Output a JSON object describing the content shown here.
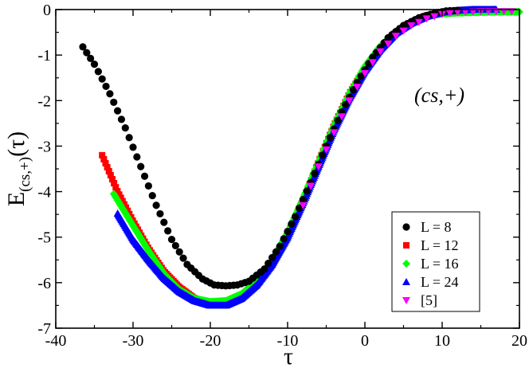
{
  "chart_data": {
    "type": "scatter",
    "title": "",
    "xlabel": "τ",
    "ylabel_main": "E",
    "ylabel_sub": "(cs,+)",
    "ylabel_tail": "(τ)",
    "annotation": "(cs,+)",
    "xlim": [
      -40,
      20
    ],
    "ylim": [
      -7,
      0
    ],
    "x_ticks": [
      -40,
      -30,
      -20,
      -10,
      0,
      10,
      20
    ],
    "y_ticks": [
      -7,
      -6,
      -5,
      -4,
      -3,
      -2,
      -1,
      0
    ],
    "x_tick_labels": [
      "-40",
      "-30",
      "-20",
      "-10",
      "0",
      "10",
      "20"
    ],
    "y_tick_labels": [
      "-7",
      "-6",
      "-5",
      "-4",
      "-3",
      "-2",
      "-1",
      "0"
    ],
    "legend_position": "lower-right",
    "series": [
      {
        "name": "L = 8",
        "marker": "circle",
        "color": "#000000",
        "x_start": -36.5,
        "x_end": 12.0,
        "step": 0.5,
        "knots": [
          [
            -36.5,
            -0.82
          ],
          [
            -35,
            -1.2
          ],
          [
            -33,
            -1.85
          ],
          [
            -31,
            -2.6
          ],
          [
            -29,
            -3.45
          ],
          [
            -27,
            -4.3
          ],
          [
            -25,
            -5.05
          ],
          [
            -23,
            -5.6
          ],
          [
            -21,
            -5.92
          ],
          [
            -19.5,
            -6.05
          ],
          [
            -18,
            -6.07
          ],
          [
            -16.5,
            -6.05
          ],
          [
            -15,
            -5.97
          ],
          [
            -13,
            -5.7
          ],
          [
            -11,
            -5.2
          ],
          [
            -9,
            -4.55
          ],
          [
            -7,
            -3.8
          ],
          [
            -5,
            -3.0
          ],
          [
            -3,
            -2.25
          ],
          [
            -1,
            -1.6
          ],
          [
            1,
            -1.05
          ],
          [
            3,
            -0.62
          ],
          [
            5,
            -0.35
          ],
          [
            7,
            -0.18
          ],
          [
            9,
            -0.08
          ],
          [
            10.5,
            -0.03
          ],
          [
            12,
            -0.02
          ]
        ]
      },
      {
        "name": "L = 12",
        "marker": "square",
        "color": "#ff0000",
        "x_start": -34.0,
        "x_end": 14.0,
        "step": 0.22,
        "knots": [
          [
            -34,
            -3.2
          ],
          [
            -32,
            -4.0
          ],
          [
            -30,
            -4.65
          ],
          [
            -28,
            -5.25
          ],
          [
            -26,
            -5.75
          ],
          [
            -24,
            -6.1
          ],
          [
            -22,
            -6.35
          ],
          [
            -20,
            -6.47
          ],
          [
            -18,
            -6.45
          ],
          [
            -16,
            -6.3
          ],
          [
            -14,
            -6.0
          ],
          [
            -12,
            -5.55
          ],
          [
            -10,
            -4.95
          ],
          [
            -8,
            -4.2
          ],
          [
            -6,
            -3.35
          ],
          [
            -4,
            -2.55
          ],
          [
            -2,
            -1.85
          ],
          [
            0,
            -1.3
          ],
          [
            2,
            -0.85
          ],
          [
            4,
            -0.5
          ],
          [
            6,
            -0.28
          ],
          [
            8,
            -0.13
          ],
          [
            10,
            -0.06
          ],
          [
            12,
            -0.02
          ],
          [
            14,
            0.0
          ]
        ]
      },
      {
        "name": "L = 16",
        "marker": "diamond",
        "color": "#00ff00",
        "x_start": -32.5,
        "x_end": 20.0,
        "step": 0.16,
        "knots": [
          [
            -32.5,
            -4.05
          ],
          [
            -30,
            -4.75
          ],
          [
            -28,
            -5.3
          ],
          [
            -26,
            -5.8
          ],
          [
            -24,
            -6.15
          ],
          [
            -22,
            -6.35
          ],
          [
            -20,
            -6.42
          ],
          [
            -18,
            -6.4
          ],
          [
            -16,
            -6.25
          ],
          [
            -14,
            -5.95
          ],
          [
            -12,
            -5.5
          ],
          [
            -10,
            -4.9
          ],
          [
            -8,
            -4.15
          ],
          [
            -6,
            -3.35
          ],
          [
            -4,
            -2.55
          ],
          [
            -2,
            -1.85
          ],
          [
            0,
            -1.25
          ],
          [
            2,
            -0.8
          ],
          [
            4,
            -0.48
          ],
          [
            6,
            -0.28
          ],
          [
            8,
            -0.15
          ],
          [
            10,
            -0.09
          ],
          [
            12,
            -0.07
          ],
          [
            14,
            -0.06
          ],
          [
            17,
            -0.05
          ],
          [
            20,
            -0.05
          ]
        ]
      },
      {
        "name": "L = 24",
        "marker": "triangle-up",
        "color": "#0000ff",
        "x_start": -32.0,
        "x_end": 17.0,
        "step": 0.1,
        "knots": [
          [
            -32,
            -4.48
          ],
          [
            -30,
            -5.05
          ],
          [
            -28,
            -5.5
          ],
          [
            -26,
            -5.9
          ],
          [
            -24,
            -6.2
          ],
          [
            -22,
            -6.4
          ],
          [
            -20,
            -6.5
          ],
          [
            -18,
            -6.5
          ],
          [
            -16,
            -6.35
          ],
          [
            -14,
            -6.05
          ],
          [
            -12,
            -5.6
          ],
          [
            -10,
            -5.0
          ],
          [
            -8,
            -4.25
          ],
          [
            -6,
            -3.45
          ],
          [
            -4,
            -2.65
          ],
          [
            -2,
            -1.95
          ],
          [
            0,
            -1.35
          ],
          [
            2,
            -0.88
          ],
          [
            4,
            -0.52
          ],
          [
            6,
            -0.3
          ],
          [
            8,
            -0.15
          ],
          [
            10,
            -0.06
          ],
          [
            12,
            -0.02
          ],
          [
            14,
            0.0
          ],
          [
            17,
            0.0
          ]
        ]
      },
      {
        "name": "[5]",
        "marker": "triangle-down",
        "color": "#ff00ff",
        "x_start": -8.0,
        "x_end": 19.0,
        "step": 1.0,
        "knots": [
          [
            -8,
            -4.3
          ],
          [
            -6,
            -3.45
          ],
          [
            -4,
            -2.7
          ],
          [
            -2,
            -2.0
          ],
          [
            0,
            -1.4
          ],
          [
            2,
            -0.92
          ],
          [
            4,
            -0.58
          ],
          [
            6,
            -0.35
          ],
          [
            8,
            -0.2
          ],
          [
            10,
            -0.1
          ],
          [
            12,
            -0.06
          ],
          [
            15,
            -0.04
          ],
          [
            17,
            -0.04
          ],
          [
            19,
            -0.04
          ]
        ]
      }
    ]
  }
}
